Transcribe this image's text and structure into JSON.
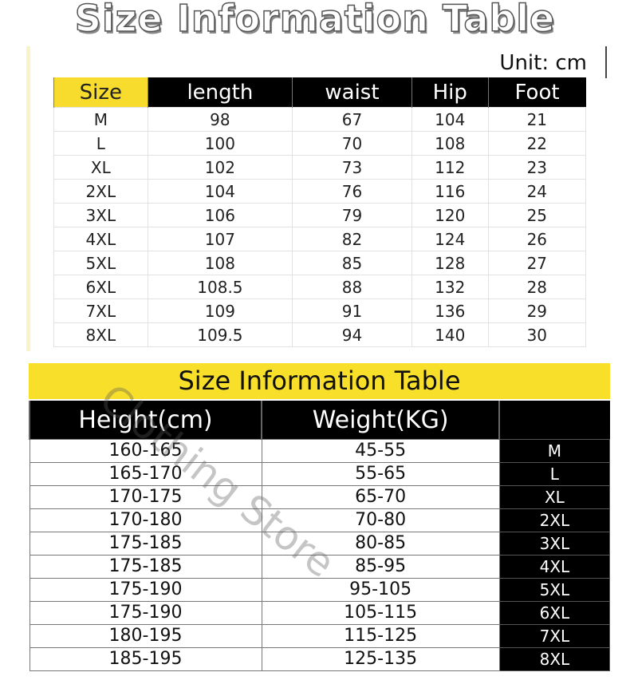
{
  "title": "Size Information Table",
  "unit": "Unit: cm",
  "table1": {
    "headers": [
      "Size",
      "length",
      "waist",
      "Hip",
      "Foot"
    ],
    "rows": [
      [
        "M",
        "98",
        "67",
        "104",
        "21"
      ],
      [
        "L",
        "100",
        "70",
        "108",
        "22"
      ],
      [
        "XL",
        "102",
        "73",
        "112",
        "23"
      ],
      [
        "2XL",
        "104",
        "76",
        "116",
        "24"
      ],
      [
        "3XL",
        "106",
        "79",
        "120",
        "25"
      ],
      [
        "4XL",
        "107",
        "82",
        "124",
        "26"
      ],
      [
        "5XL",
        "108",
        "85",
        "128",
        "27"
      ],
      [
        "6XL",
        "108.5",
        "88",
        "132",
        "28"
      ],
      [
        "7XL",
        "109",
        "91",
        "136",
        "29"
      ],
      [
        "8XL",
        "109.5",
        "94",
        "140",
        "30"
      ]
    ]
  },
  "banner": "Size Information Table",
  "table2": {
    "headers": [
      "Height(cm)",
      "Weight(KG)",
      ""
    ],
    "rows": [
      [
        "160-165",
        "45-55",
        "M"
      ],
      [
        "165-170",
        "55-65",
        "L"
      ],
      [
        "170-175",
        "65-70",
        "XL"
      ],
      [
        "170-180",
        "70-80",
        "2XL"
      ],
      [
        "175-185",
        "80-85",
        "3XL"
      ],
      [
        "175-185",
        "85-95",
        "4XL"
      ],
      [
        "175-190",
        "95-105",
        "5XL"
      ],
      [
        "175-190",
        "105-115",
        "6XL"
      ],
      [
        "180-195",
        "115-125",
        "7XL"
      ],
      [
        "185-195",
        "125-135",
        "8XL"
      ]
    ]
  },
  "watermark": "Clothing Store",
  "colors": {
    "accent_yellow": "#f7dc2d",
    "header_black": "#000000"
  }
}
